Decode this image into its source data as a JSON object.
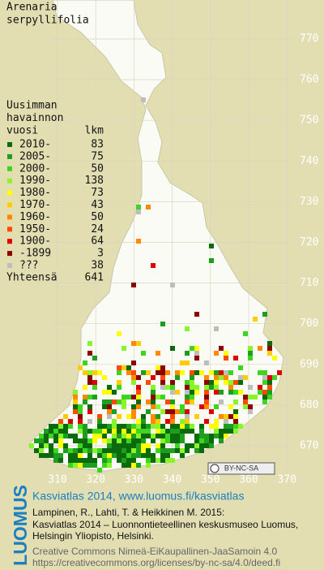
{
  "title": [
    "Arenaria",
    "serpyllifolia"
  ],
  "legend": {
    "header": [
      "Uusimman",
      "havainnon",
      "vuosi"
    ],
    "count_header": "lkm",
    "entries": [
      {
        "label": "2010-",
        "count": 83,
        "color": "#0b6a0b"
      },
      {
        "label": "2005-",
        "count": 75,
        "color": "#1e9e1e"
      },
      {
        "label": "2000-",
        "count": 50,
        "color": "#3fd41f"
      },
      {
        "label": "1990-",
        "count": 138,
        "color": "#88f52a"
      },
      {
        "label": "1980-",
        "count": 73,
        "color": "#ffff00"
      },
      {
        "label": "1970-",
        "count": 43,
        "color": "#ffcc00"
      },
      {
        "label": "1960-",
        "count": 50,
        "color": "#ff8a00"
      },
      {
        "label": "1950-",
        "count": 24,
        "color": "#ff4a00"
      },
      {
        "label": "1900-",
        "count": 64,
        "color": "#dd0000"
      },
      {
        "label": "-1899",
        "count": 3,
        "color": "#8c0000"
      },
      {
        "label": "???",
        "count": 38,
        "color": "#bdbdbd"
      }
    ],
    "total_label": "Yhteensä",
    "total": 641
  },
  "grid": {
    "y_labels": [
      770,
      760,
      750,
      740,
      730,
      720,
      710,
      700,
      690,
      680,
      670
    ],
    "x_labels": [
      310,
      320,
      330,
      340,
      350,
      360,
      370
    ]
  },
  "license_badge": "BY-NC-SA",
  "footer": {
    "logo": "LUOMUS",
    "heading": "Kasviatlas 2014, www.luomus.fi/kasviatlas",
    "citation": [
      "Lampinen, R., Lahti, T. & Heikkinen M. 2015:",
      "Kasviatlas 2014 – Luonnontieteellinen keskusmuseo Luomus,",
      "Helsingin Yliopisto, Helsinki."
    ],
    "license": [
      "Creative Commons Nimeä-EiKaupallinen-JaaSamoin 4.0",
      "https://creativecommons.org/licenses/by-nc-sa/4.0/deed.fi"
    ]
  }
}
